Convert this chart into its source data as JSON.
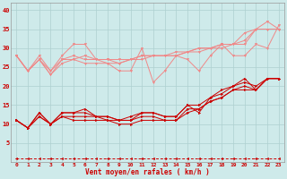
{
  "x": [
    0,
    1,
    2,
    3,
    4,
    5,
    6,
    7,
    8,
    9,
    10,
    11,
    12,
    13,
    14,
    15,
    16,
    17,
    18,
    19,
    20,
    21,
    22,
    23
  ],
  "background_color": "#ceeaea",
  "grid_color": "#aed0d0",
  "xlabel": "Vent moyen/en rafales ( km/h )",
  "xlabel_color": "#cc0000",
  "tick_color": "#cc0000",
  "ylim": [
    0,
    42
  ],
  "yticks": [
    5,
    10,
    15,
    20,
    25,
    30,
    35,
    40
  ],
  "series_light": [
    [
      28,
      24,
      28,
      24,
      28,
      31,
      31,
      27,
      26,
      24,
      24,
      30,
      21,
      24,
      28,
      27,
      24,
      28,
      31,
      28,
      28,
      31,
      30,
      36
    ],
    [
      28,
      24,
      27,
      23,
      27,
      28,
      27,
      27,
      27,
      27,
      27,
      28,
      28,
      28,
      29,
      29,
      30,
      30,
      31,
      31,
      32,
      35,
      35,
      35
    ],
    [
      28,
      24,
      27,
      23,
      26,
      27,
      26,
      26,
      26,
      26,
      27,
      27,
      28,
      28,
      28,
      29,
      29,
      30,
      30,
      31,
      31,
      35,
      35,
      35
    ],
    [
      28,
      24,
      27,
      24,
      27,
      27,
      28,
      27,
      27,
      26,
      27,
      28,
      28,
      28,
      28,
      29,
      30,
      30,
      31,
      31,
      34,
      35,
      37,
      35
    ]
  ],
  "series_dark": [
    [
      11,
      9,
      13,
      10,
      13,
      13,
      14,
      12,
      12,
      11,
      12,
      13,
      13,
      12,
      12,
      15,
      13,
      17,
      19,
      20,
      22,
      19,
      22,
      22
    ],
    [
      11,
      9,
      13,
      10,
      13,
      13,
      13,
      12,
      12,
      11,
      11,
      13,
      13,
      12,
      12,
      15,
      15,
      17,
      18,
      20,
      21,
      20,
      22,
      22
    ],
    [
      11,
      9,
      12,
      10,
      12,
      12,
      12,
      12,
      11,
      11,
      11,
      12,
      12,
      11,
      11,
      14,
      14,
      16,
      17,
      19,
      20,
      19,
      22,
      22
    ],
    [
      11,
      9,
      12,
      10,
      12,
      11,
      11,
      11,
      11,
      10,
      10,
      11,
      11,
      11,
      11,
      13,
      14,
      16,
      17,
      19,
      19,
      19,
      22,
      22
    ]
  ],
  "series_bottom": [
    1,
    1,
    1,
    1,
    1,
    1,
    1,
    1,
    1,
    1,
    1,
    1,
    1,
    1,
    1,
    1,
    1,
    1,
    1,
    1,
    1,
    1,
    1,
    1
  ]
}
